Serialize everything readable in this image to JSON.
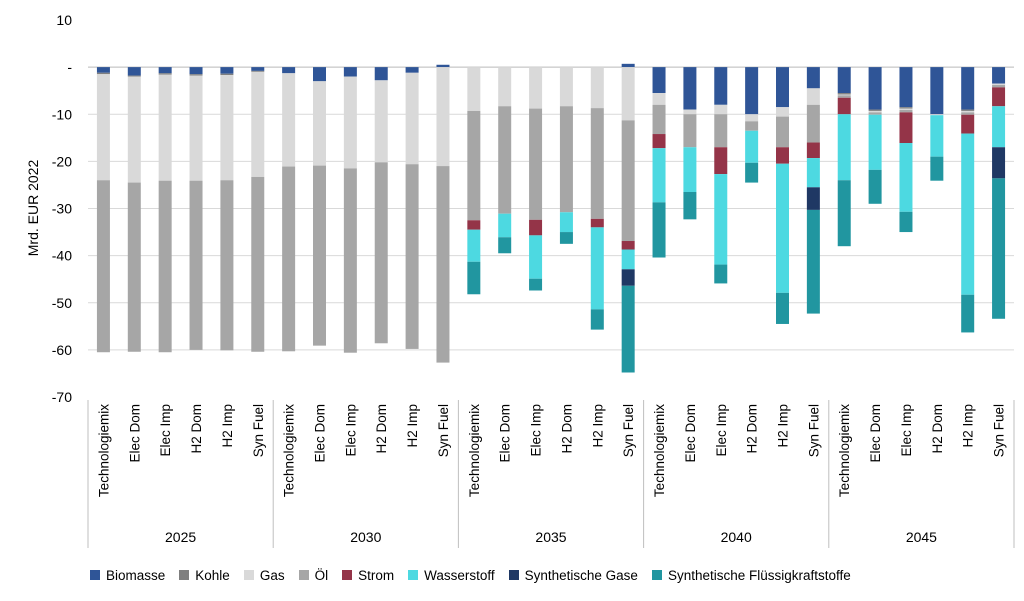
{
  "chart_data": {
    "type": "bar",
    "stacked": true,
    "ylabel": "Mrd. EUR 2022",
    "ylim": [
      -70,
      10
    ],
    "yticks": [
      10,
      0,
      -10,
      -20,
      -30,
      -40,
      -50,
      -60,
      -70
    ],
    "ytick_labels": [
      "10",
      "-",
      "-10",
      "-20",
      "-30",
      "-40",
      "-50",
      "-60",
      "-70"
    ],
    "grid": true,
    "legend_position": "bottom",
    "groups": [
      "2025",
      "2030",
      "2035",
      "2040",
      "2045"
    ],
    "categories": [
      "Technologiemix",
      "Elec Dom",
      "Elec Imp",
      "H2 Dom",
      "H2 Imp",
      "Syn Fuel"
    ],
    "series": [
      {
        "name": "Biomasse",
        "color": "#2f5597",
        "values": [
          [
            -1.2,
            -1.8,
            -1.3,
            -1.5,
            -1.4,
            -0.8
          ],
          [
            -1.3,
            -3.0,
            -2.0,
            -2.8,
            -1.2,
            0.5
          ],
          [
            0,
            0,
            0,
            0,
            0,
            0.7
          ],
          [
            -5.5,
            -9.0,
            -8.0,
            -10.0,
            -8.5,
            -4.5
          ],
          [
            -5.5,
            -9.0,
            -8.5,
            -10.0,
            -9.0,
            -3.5
          ]
        ]
      },
      {
        "name": "Kohle",
        "color": "#7f7f7f",
        "values": [
          [
            -0.3,
            -0.2,
            -0.3,
            -0.3,
            -0.3,
            -0.2
          ],
          [
            0,
            0,
            0,
            0,
            0,
            0
          ],
          [
            0,
            0,
            0,
            0,
            0,
            0
          ],
          [
            0,
            0,
            0,
            0,
            0,
            0
          ],
          [
            -0.3,
            -0.3,
            -0.3,
            0,
            -0.3,
            0
          ]
        ]
      },
      {
        "name": "Gas",
        "color": "#d9d9d9",
        "values": [
          [
            -22.5,
            -22.5,
            -22.5,
            -22.3,
            -22.3,
            -22.3
          ],
          [
            -19.8,
            -17.9,
            -19.5,
            -17.4,
            -19.4,
            -21.0
          ],
          [
            -9.3,
            -8.3,
            -8.8,
            -8.3,
            -8.7,
            -11.3
          ],
          [
            -2.5,
            -1.0,
            -2.0,
            -1.5,
            -2.0,
            -3.5
          ],
          [
            -0.2,
            -0.3,
            -0.3,
            -0.2,
            -0.3,
            -0.3
          ]
        ]
      },
      {
        "name": "Öl",
        "color": "#a6a6a6",
        "values": [
          [
            -36.5,
            -35.9,
            -36.4,
            -35.9,
            -36.1,
            -37.1
          ],
          [
            -39.2,
            -38.2,
            -39.1,
            -38.4,
            -39.2,
            -41.7
          ],
          [
            -23.2,
            -22.8,
            -23.6,
            -22.5,
            -23.5,
            -25.6
          ],
          [
            -6.2,
            -7.0,
            -7.0,
            -2.0,
            -6.5,
            -8.0
          ],
          [
            -0.5,
            -0.5,
            -0.5,
            0,
            -0.5,
            -0.5
          ]
        ]
      },
      {
        "name": "Strom",
        "color": "#943448",
        "values": [
          [
            0,
            0,
            0,
            0,
            0,
            0
          ],
          [
            0,
            0,
            0,
            0,
            0,
            0
          ],
          [
            -2.0,
            0,
            -3.3,
            0,
            -1.8,
            -1.8
          ],
          [
            -3.0,
            0,
            -5.7,
            0,
            -3.5,
            -3.3
          ],
          [
            -3.5,
            0,
            -6.5,
            0,
            -4.0,
            -4.0
          ]
        ]
      },
      {
        "name": "Wasserstoff",
        "color": "#4dd9e1",
        "values": [
          [
            0,
            0,
            0,
            0,
            0,
            0
          ],
          [
            0,
            0,
            0,
            0,
            0,
            0
          ],
          [
            -6.8,
            -5.0,
            -9.2,
            -4.2,
            -17.4,
            -4.2
          ],
          [
            -11.5,
            -9.5,
            -19.2,
            -6.8,
            -27.4,
            -6.2
          ],
          [
            -14.0,
            -11.7,
            -14.6,
            -8.8,
            -34.2,
            -8.7
          ]
        ]
      },
      {
        "name": "Synthetische Gase",
        "color": "#1f3864",
        "values": [
          [
            0,
            0,
            0,
            0,
            0,
            0
          ],
          [
            0,
            0,
            0,
            0,
            0,
            0
          ],
          [
            0,
            0,
            0,
            0,
            0,
            -3.5
          ],
          [
            0,
            0,
            0,
            0,
            0,
            -4.8
          ],
          [
            0,
            0,
            0,
            0,
            0,
            -6.6
          ]
        ]
      },
      {
        "name": "Synthetische Flüssigkraftstoffe",
        "color": "#2196a0",
        "values": [
          [
            0,
            0,
            0,
            0,
            0,
            0
          ],
          [
            0,
            0,
            0,
            0,
            0,
            0
          ],
          [
            -6.9,
            -3.4,
            -2.5,
            -2.5,
            -4.3,
            -18.4
          ],
          [
            -11.7,
            -5.8,
            -4.0,
            -4.2,
            -6.6,
            -22.0
          ],
          [
            -14.0,
            -7.2,
            -4.3,
            -5.1,
            -8.0,
            -29.8
          ]
        ]
      }
    ]
  }
}
